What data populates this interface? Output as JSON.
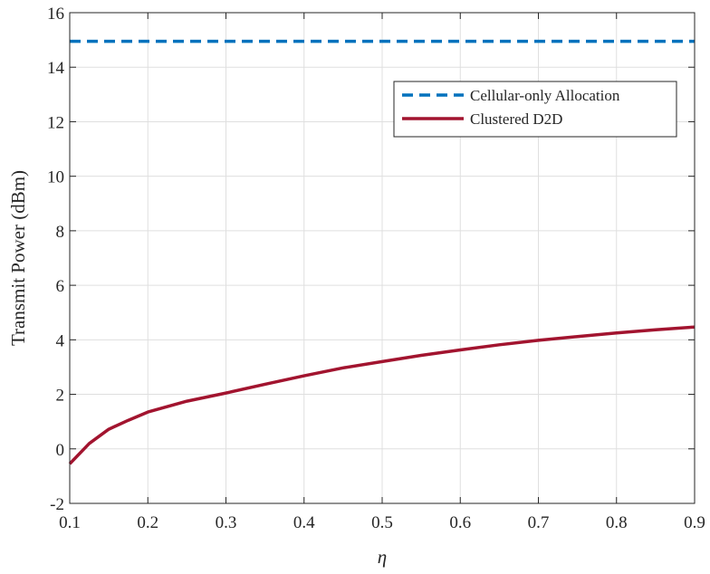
{
  "chart_data": {
    "type": "line",
    "xlabel": "η",
    "ylabel": "Transmit Power (dBm)",
    "xlim": [
      0.1,
      0.9
    ],
    "ylim": [
      -2,
      16
    ],
    "xticks": [
      "0.1",
      "0.2",
      "0.3",
      "0.4",
      "0.5",
      "0.6",
      "0.7",
      "0.8",
      "0.9"
    ],
    "yticks": [
      "-2",
      "0",
      "2",
      "4",
      "6",
      "8",
      "10",
      "12",
      "14",
      "16"
    ],
    "grid": true,
    "legend_position": "top-right",
    "series": [
      {
        "name": "Cellular-only Allocation",
        "color": "#0072BD",
        "style": "dashed",
        "x": [
          0.1,
          0.9
        ],
        "y": [
          14.95,
          14.95
        ]
      },
      {
        "name": "Clustered D2D",
        "color": "#A2142F",
        "style": "solid",
        "x": [
          0.1,
          0.125,
          0.15,
          0.175,
          0.2,
          0.25,
          0.3,
          0.35,
          0.4,
          0.45,
          0.5,
          0.55,
          0.6,
          0.65,
          0.7,
          0.75,
          0.8,
          0.85,
          0.9
        ],
        "y": [
          -0.55,
          0.2,
          0.72,
          1.05,
          1.35,
          1.75,
          2.05,
          2.37,
          2.68,
          2.97,
          3.2,
          3.43,
          3.63,
          3.82,
          3.98,
          4.12,
          4.25,
          4.37,
          4.47
        ]
      }
    ]
  }
}
